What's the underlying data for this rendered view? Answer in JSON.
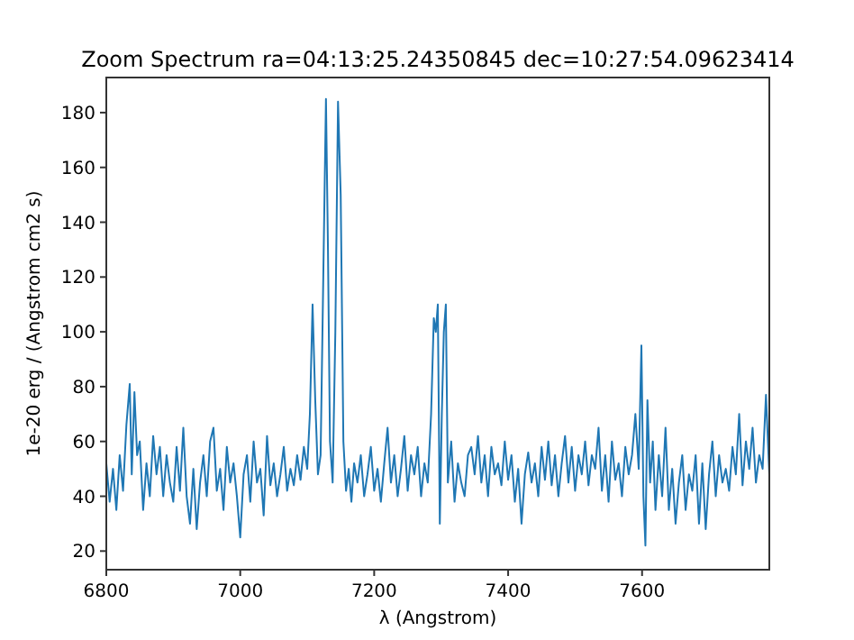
{
  "chart_data": {
    "type": "line",
    "title": "Zoom Spectrum ra=04:13:25.24350845 dec=10:27:54.09623414",
    "xlabel": "λ (Angstrom)",
    "ylabel": "1e-20 erg / (Angstrom cm2 s)",
    "xlim": [
      6800,
      7790
    ],
    "ylim": [
      13.2,
      192.8
    ],
    "xticks": [
      6800,
      7000,
      7200,
      7400,
      7600
    ],
    "yticks": [
      20,
      40,
      60,
      80,
      100,
      120,
      140,
      160,
      180
    ],
    "grid": false,
    "series": [
      {
        "color": "#1f77b4",
        "x": [
          6800,
          6805,
          6810,
          6815,
          6820,
          6825,
          6830,
          6835,
          6838,
          6842,
          6846,
          6850,
          6855,
          6860,
          6865,
          6870,
          6875,
          6880,
          6885,
          6890,
          6895,
          6900,
          6905,
          6910,
          6915,
          6920,
          6925,
          6930,
          6935,
          6940,
          6945,
          6950,
          6955,
          6960,
          6965,
          6970,
          6975,
          6980,
          6985,
          6990,
          6995,
          7000,
          7005,
          7010,
          7015,
          7020,
          7025,
          7030,
          7035,
          7040,
          7045,
          7050,
          7055,
          7060,
          7065,
          7070,
          7075,
          7080,
          7085,
          7090,
          7095,
          7100,
          7104,
          7108,
          7112,
          7116,
          7120,
          7124,
          7128,
          7131,
          7134,
          7138,
          7142,
          7146,
          7150,
          7154,
          7158,
          7162,
          7166,
          7170,
          7175,
          7180,
          7185,
          7190,
          7195,
          7200,
          7205,
          7210,
          7215,
          7220,
          7225,
          7230,
          7235,
          7240,
          7245,
          7250,
          7255,
          7260,
          7265,
          7270,
          7275,
          7280,
          7285,
          7289,
          7292,
          7295,
          7298,
          7301,
          7304,
          7307,
          7310,
          7315,
          7320,
          7325,
          7330,
          7335,
          7340,
          7345,
          7350,
          7355,
          7360,
          7365,
          7370,
          7375,
          7380,
          7385,
          7390,
          7395,
          7400,
          7405,
          7410,
          7415,
          7420,
          7425,
          7430,
          7435,
          7440,
          7445,
          7450,
          7455,
          7460,
          7465,
          7470,
          7475,
          7480,
          7485,
          7490,
          7495,
          7500,
          7505,
          7510,
          7515,
          7520,
          7525,
          7530,
          7535,
          7540,
          7545,
          7550,
          7555,
          7560,
          7565,
          7570,
          7575,
          7580,
          7585,
          7590,
          7595,
          7599,
          7602,
          7605,
          7608,
          7612,
          7616,
          7620,
          7625,
          7630,
          7635,
          7640,
          7645,
          7650,
          7655,
          7660,
          7665,
          7670,
          7675,
          7680,
          7685,
          7690,
          7695,
          7700,
          7705,
          7710,
          7715,
          7720,
          7725,
          7730,
          7735,
          7740,
          7745,
          7750,
          7755,
          7760,
          7765,
          7770,
          7775,
          7780,
          7785,
          7790
        ],
        "values": [
          52,
          38,
          50,
          35,
          55,
          42,
          66,
          81,
          48,
          78,
          55,
          60,
          35,
          52,
          40,
          62,
          48,
          58,
          40,
          55,
          45,
          38,
          58,
          42,
          65,
          40,
          30,
          50,
          28,
          45,
          55,
          40,
          60,
          65,
          42,
          50,
          35,
          58,
          45,
          52,
          40,
          25,
          48,
          55,
          38,
          60,
          45,
          50,
          33,
          62,
          44,
          52,
          40,
          48,
          58,
          42,
          50,
          44,
          55,
          46,
          58,
          50,
          70,
          110,
          75,
          48,
          55,
          120,
          185,
          130,
          60,
          45,
          100,
          184,
          150,
          60,
          42,
          50,
          38,
          52,
          45,
          55,
          40,
          48,
          58,
          42,
          50,
          38,
          52,
          65,
          45,
          55,
          40,
          50,
          62,
          42,
          55,
          48,
          58,
          40,
          52,
          45,
          70,
          105,
          100,
          110,
          30,
          70,
          100,
          110,
          45,
          60,
          38,
          52,
          45,
          40,
          55,
          58,
          48,
          62,
          45,
          55,
          40,
          58,
          48,
          52,
          44,
          60,
          46,
          55,
          38,
          50,
          30,
          48,
          56,
          45,
          52,
          40,
          58,
          46,
          60,
          44,
          55,
          40,
          52,
          62,
          45,
          58,
          42,
          55,
          48,
          60,
          44,
          55,
          50,
          65,
          42,
          55,
          38,
          60,
          46,
          52,
          40,
          58,
          48,
          55,
          70,
          50,
          95,
          40,
          22,
          75,
          45,
          60,
          35,
          55,
          40,
          65,
          35,
          50,
          30,
          45,
          55,
          35,
          48,
          42,
          55,
          30,
          52,
          28,
          48,
          60,
          40,
          55,
          45,
          50,
          42,
          58,
          48,
          70,
          44,
          60,
          50,
          65,
          45,
          55,
          50,
          77,
          48
        ]
      }
    ]
  }
}
